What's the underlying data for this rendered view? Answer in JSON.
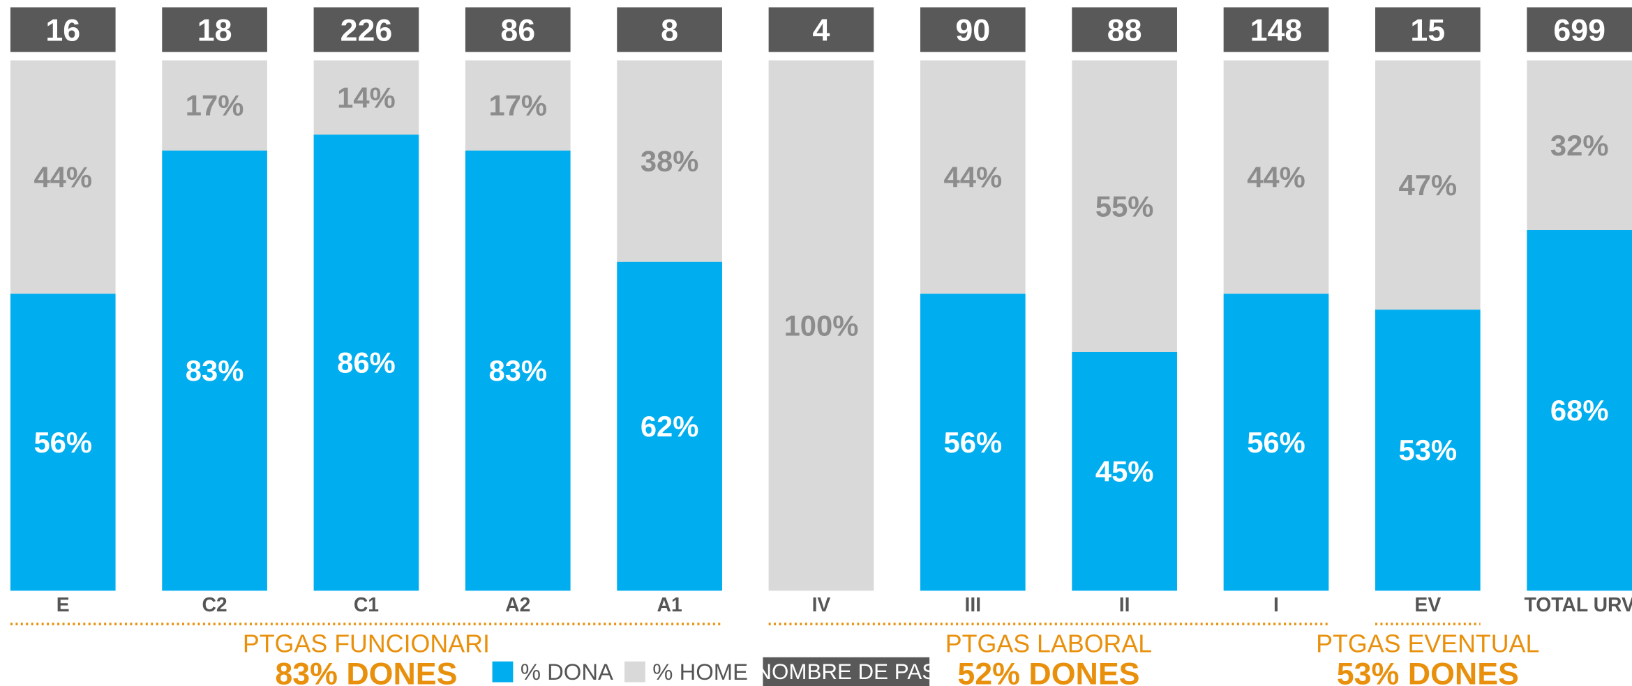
{
  "chart_data": {
    "type": "bar",
    "stacked": true,
    "categories": [
      "E",
      "C2",
      "C1",
      "A2",
      "A1",
      "IV",
      "III",
      "II",
      "I",
      "EV",
      "TOTAL URV"
    ],
    "series": [
      {
        "name": "% DONA",
        "color": "#00AEEF",
        "values": [
          56,
          83,
          86,
          83,
          62,
          0,
          56,
          45,
          56,
          53,
          68
        ],
        "value_labels": [
          "56%",
          "83%",
          "86%",
          "83%",
          "62%",
          null,
          "56%",
          "45%",
          "56%",
          "53%",
          "68%"
        ]
      },
      {
        "name": "% HOME",
        "color": "#D9D9D9",
        "values": [
          44,
          17,
          14,
          17,
          38,
          100,
          44,
          55,
          44,
          47,
          32
        ],
        "value_labels": [
          "44%",
          "17%",
          "14%",
          "17%",
          "38%",
          "100%",
          "44%",
          "55%",
          "44%",
          "47%",
          "32%"
        ]
      }
    ],
    "counts": {
      "name": "NOMBRE DE PAS",
      "color": "#595959",
      "values": [
        16,
        18,
        226,
        86,
        8,
        4,
        90,
        88,
        148,
        15,
        699
      ]
    },
    "groups": [
      {
        "title": "PTGAS FUNCIONARI",
        "subtitle": "83% DONES",
        "categories": [
          "E",
          "C2",
          "C1",
          "A2",
          "A1"
        ]
      },
      {
        "title": "PTGAS LABORAL",
        "subtitle": "52% DONES",
        "categories": [
          "IV",
          "III",
          "II",
          "I"
        ]
      },
      {
        "title": "PTGAS EVENTUAL",
        "subtitle": "53% DONES",
        "categories": [
          "EV"
        ]
      }
    ],
    "group_color": "#E8900C"
  }
}
